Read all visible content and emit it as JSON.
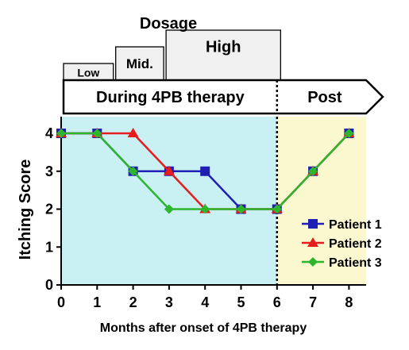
{
  "chart_data": {
    "type": "line",
    "xlabel": "Months after onset of 4PB therapy",
    "ylabel": "Itching Score",
    "x": [
      0,
      1,
      2,
      3,
      4,
      5,
      6,
      7,
      8
    ],
    "xlim": [
      0,
      8.6
    ],
    "ylim": [
      0,
      4
    ],
    "x_ticks": [
      0,
      1,
      2,
      3,
      4,
      5,
      6,
      7,
      8
    ],
    "y_ticks": [
      0,
      1,
      2,
      3,
      4
    ],
    "grid": false,
    "legend_position": "right",
    "series": [
      {
        "name": "Patient 1",
        "color": "#1f1fb5",
        "marker": "square",
        "values": [
          4,
          4,
          3,
          3,
          3,
          2,
          2,
          3,
          4
        ]
      },
      {
        "name": "Patient 2",
        "color": "#e81c1c",
        "marker": "triangle",
        "values": [
          4,
          4,
          4,
          3,
          2,
          2,
          2,
          3,
          4
        ]
      },
      {
        "name": "Patient 3",
        "color": "#2db52d",
        "marker": "diamond",
        "values": [
          4,
          4,
          3,
          2,
          2,
          2,
          2,
          3,
          4
        ]
      }
    ],
    "shaded_regions": [
      {
        "x_range": [
          0,
          6
        ],
        "color": "#c9f1f4"
      },
      {
        "x_range": [
          6,
          8.6
        ],
        "color": "#fbf8cf"
      }
    ],
    "vertical_line_x": 6,
    "dosage_title": "Dosage",
    "dosage_boxes": [
      {
        "label": "Low",
        "x_range": [
          0,
          1.45
        ],
        "level": 1
      },
      {
        "label": "Mid.",
        "x_range": [
          1.45,
          2.85
        ],
        "level": 2
      },
      {
        "label": "High",
        "x_range": [
          2.85,
          6.1
        ],
        "level": 3
      }
    ],
    "phase_arrow": [
      {
        "label": "During 4PB therapy",
        "x_range": [
          0,
          6
        ]
      },
      {
        "label": "Post",
        "x_range": [
          6,
          8.6
        ]
      }
    ]
  }
}
